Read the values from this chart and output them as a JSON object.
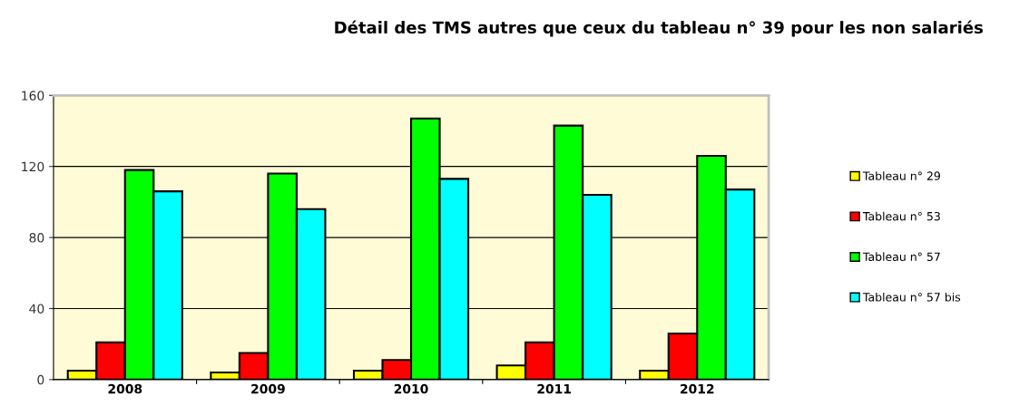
{
  "chart_data": {
    "type": "bar",
    "title": "Détail des TMS autres que ceux du tableau n° 39 pour les non salariés",
    "categories": [
      "2008",
      "2009",
      "2010",
      "2011",
      "2012"
    ],
    "series": [
      {
        "name": "Tableau n° 29",
        "color": "#ffff00",
        "values": [
          5,
          4,
          5,
          8,
          5
        ]
      },
      {
        "name": "Tableau n° 53",
        "color": "#ff0000",
        "values": [
          21,
          15,
          11,
          21,
          26
        ]
      },
      {
        "name": "Tableau n° 57",
        "color": "#00ff00",
        "values": [
          118,
          116,
          147,
          143,
          126
        ]
      },
      {
        "name": "Tableau n° 57 bis",
        "color": "#00ffff",
        "values": [
          106,
          96,
          113,
          104,
          107
        ]
      }
    ],
    "ylim": [
      0,
      160
    ],
    "yticks": [
      0,
      40,
      80,
      120,
      160
    ],
    "grid": "y",
    "legend": "right"
  }
}
